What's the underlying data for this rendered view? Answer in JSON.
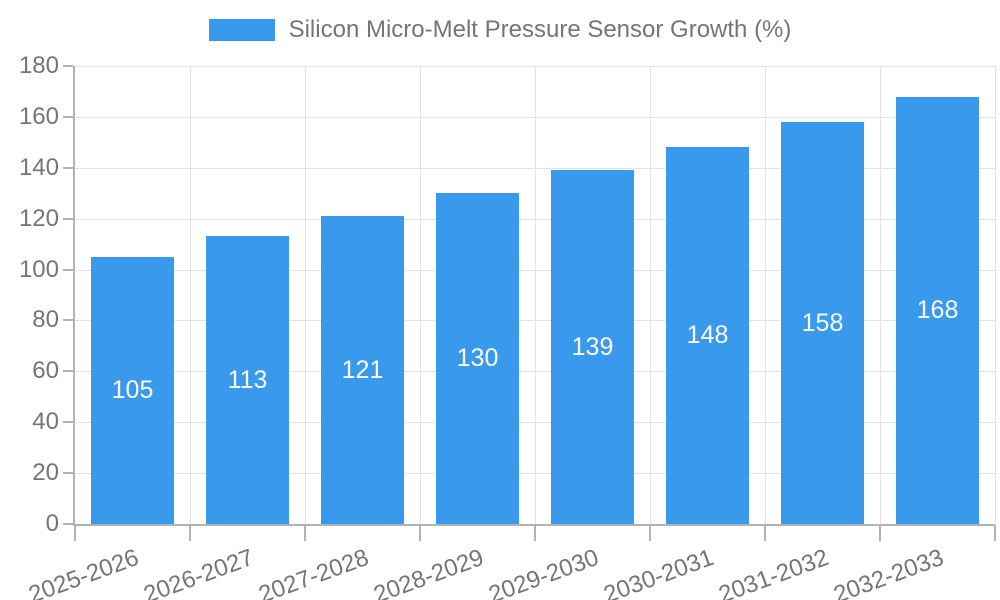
{
  "colors": {
    "bar": "#3999ec",
    "grid": "#e3e3e3",
    "axis": "#b3b3b3",
    "text": "#757575",
    "bar_label": "#ffffff",
    "background": "#ffffff"
  },
  "legend": {
    "label": "Silicon Micro-Melt Pressure Sensor Growth (%)"
  },
  "chart_data": {
    "type": "bar",
    "title": "Silicon Micro-Melt Pressure Sensor Growth (%)",
    "categories": [
      "2025-2026",
      "2026-2027",
      "2027-2028",
      "2028-2029",
      "2029-2030",
      "2030-2031",
      "2031-2032",
      "2032-2033"
    ],
    "values": [
      105,
      113,
      121,
      130,
      139,
      148,
      158,
      168
    ],
    "xlabel": "",
    "ylabel": "",
    "ylim": [
      0,
      180
    ],
    "ytick_step": 20,
    "yticks": [
      0,
      20,
      40,
      60,
      80,
      100,
      120,
      140,
      160,
      180
    ],
    "grid": true,
    "legend_position": "top-center",
    "bar_labels_inside": true,
    "x_label_rotation_deg": -20
  }
}
